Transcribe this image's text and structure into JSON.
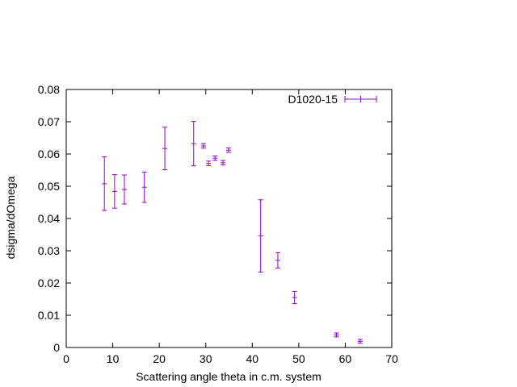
{
  "chart_data": {
    "type": "scatter",
    "title": "",
    "xlabel": "Scattering angle theta in c.m. system",
    "ylabel": "dsigma/dOmega",
    "xlim": [
      0,
      70
    ],
    "ylim": [
      0,
      0.08
    ],
    "xticks": [
      0,
      10,
      20,
      30,
      40,
      50,
      60,
      70
    ],
    "yticks": [
      0,
      0.01,
      0.02,
      0.03,
      0.04,
      0.05,
      0.06,
      0.07,
      0.08
    ],
    "xtick_labels": [
      "0",
      "10",
      "20",
      "30",
      "40",
      "50",
      "60",
      "70"
    ],
    "ytick_labels": [
      "0",
      "0.01",
      "0.02",
      "0.03",
      "0.04",
      "0.05",
      "0.06",
      "0.07",
      "0.08"
    ],
    "grid": false,
    "legend_position": "top-right",
    "series": [
      {
        "name": "D1020-15",
        "color": "#9400D3",
        "style": "errorbars",
        "points": [
          {
            "x": 8.2,
            "y": 0.0508,
            "yerr": 0.0083
          },
          {
            "x": 10.4,
            "y": 0.0484,
            "yerr": 0.0052
          },
          {
            "x": 12.5,
            "y": 0.049,
            "yerr": 0.0045
          },
          {
            "x": 16.8,
            "y": 0.0497,
            "yerr": 0.0047
          },
          {
            "x": 21.2,
            "y": 0.0617,
            "yerr": 0.0066
          },
          {
            "x": 27.4,
            "y": 0.0632,
            "yerr": 0.0069
          },
          {
            "x": 29.5,
            "y": 0.0625,
            "yerr": 0.0007
          },
          {
            "x": 30.6,
            "y": 0.0571,
            "yerr": 0.0007
          },
          {
            "x": 32.0,
            "y": 0.0587,
            "yerr": 0.0007
          },
          {
            "x": 33.7,
            "y": 0.0573,
            "yerr": 0.0007
          },
          {
            "x": 34.9,
            "y": 0.0612,
            "yerr": 0.0007
          },
          {
            "x": 41.8,
            "y": 0.0346,
            "yerr": 0.0112
          },
          {
            "x": 45.5,
            "y": 0.027,
            "yerr": 0.0024
          },
          {
            "x": 49.1,
            "y": 0.0155,
            "yerr": 0.0019
          },
          {
            "x": 58.1,
            "y": 0.0039,
            "yerr": 0.0006
          },
          {
            "x": 63.2,
            "y": 0.0019,
            "yerr": 0.0006
          }
        ]
      }
    ]
  }
}
